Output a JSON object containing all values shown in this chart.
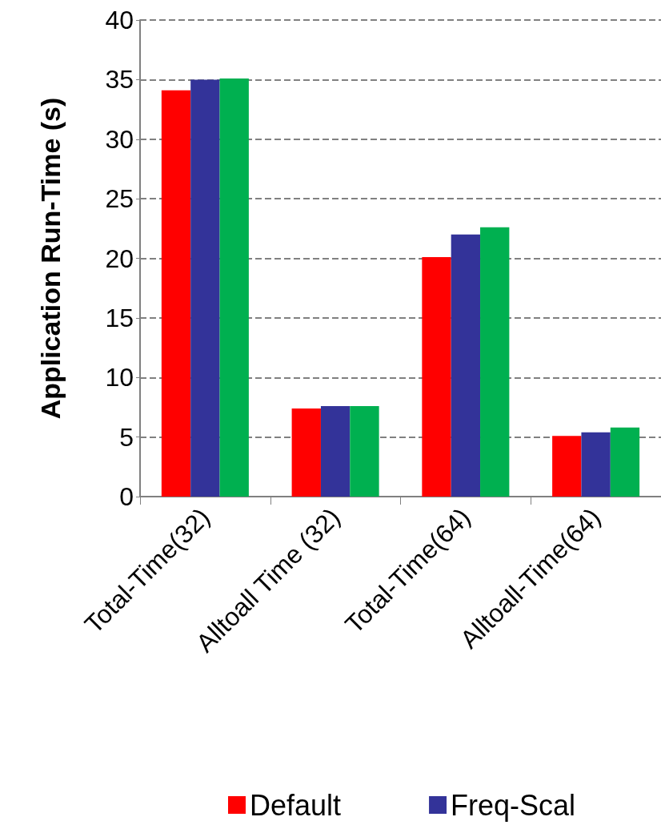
{
  "chart_data": {
    "type": "bar",
    "ylabel": "Application Run-Time (s)",
    "categories": [
      "Total-Time(32)",
      "Alltoall Time (32)",
      "Total-Time(64)",
      "Alltoall-Time(64)"
    ],
    "series": [
      {
        "name": "Default",
        "color": "#ff0000",
        "values": [
          34.1,
          7.4,
          20.1,
          5.1
        ]
      },
      {
        "name": "Freq-Scal",
        "color": "#333399",
        "values": [
          35.0,
          7.6,
          22.0,
          5.4
        ]
      },
      {
        "color": "#00b050",
        "values": [
          35.1,
          7.6,
          22.6,
          5.8
        ]
      }
    ],
    "ylim": [
      0,
      40
    ],
    "yticks": [
      0,
      5,
      10,
      15,
      20,
      25,
      30,
      35,
      40
    ],
    "grid": "y",
    "line_style": "dashed",
    "legend": "bottom"
  }
}
